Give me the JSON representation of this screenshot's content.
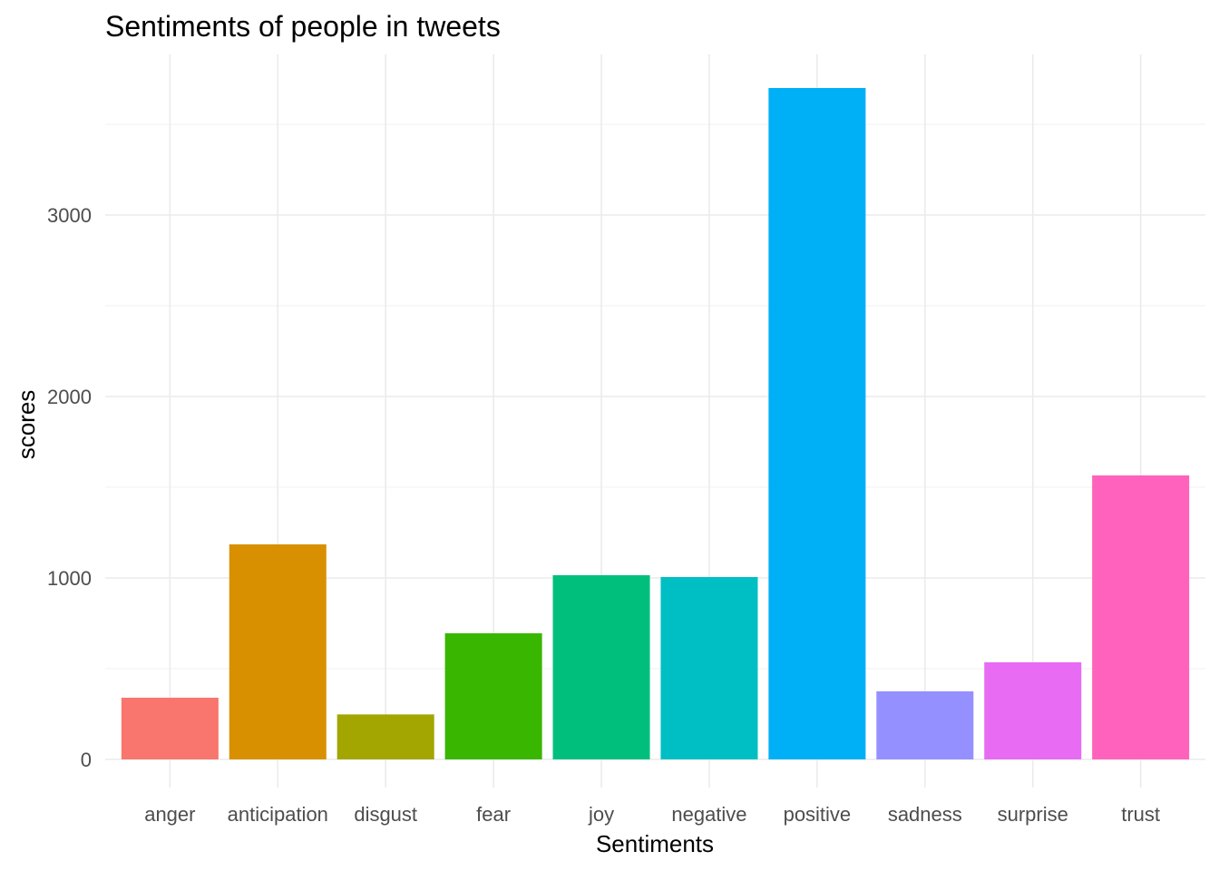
{
  "chart_data": {
    "type": "bar",
    "title": "Sentiments of people in tweets",
    "xlabel": "Sentiments",
    "ylabel": "scores",
    "categories": [
      "anger",
      "anticipation",
      "disgust",
      "fear",
      "joy",
      "negative",
      "positive",
      "sadness",
      "surprise",
      "trust"
    ],
    "values": [
      340,
      1185,
      248,
      695,
      1015,
      1005,
      3700,
      375,
      535,
      1565
    ],
    "colors": [
      "#F8766D",
      "#D89000",
      "#A3A500",
      "#39B600",
      "#00BF7D",
      "#00BFC4",
      "#00B0F6",
      "#9590FF",
      "#E76BF3",
      "#FF62BC"
    ],
    "ylim": [
      -155,
      3885
    ],
    "yticks": [
      "0",
      "1000",
      "2000",
      "3000"
    ],
    "grid": true,
    "legend": "none"
  }
}
